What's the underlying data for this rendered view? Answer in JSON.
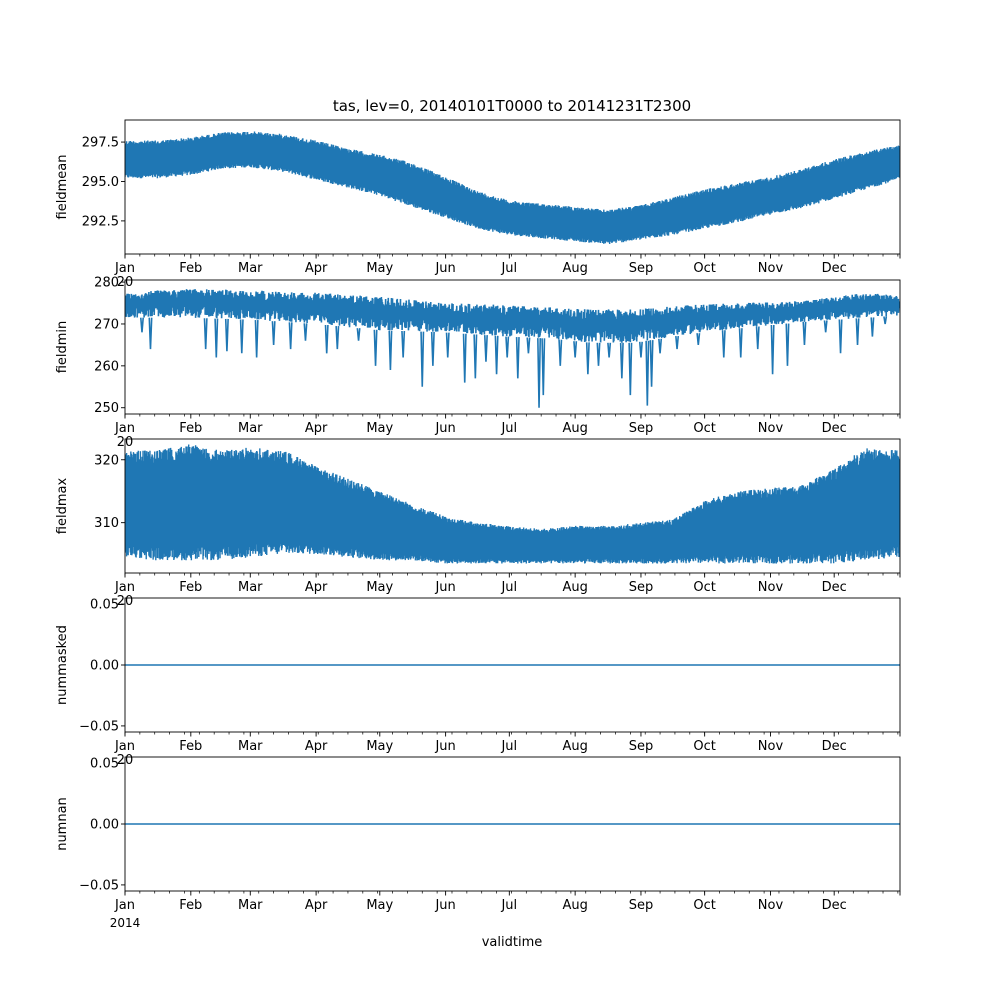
{
  "figure": {
    "title": "tas, lev=0, 20140101T0000 to 20141231T2300",
    "xlabel": "validtime",
    "year_label": "2014",
    "line_color": "#1f77b4"
  },
  "chart_data": [
    {
      "type": "line",
      "name": "fieldmean",
      "ylabel": "fieldmean",
      "ylim": [
        290.4,
        298.9
      ],
      "yticks": [
        292.5,
        295.0,
        297.5
      ],
      "ytick_labels": [
        "292.5",
        "295.0",
        "297.5"
      ],
      "x_range_days": [
        0,
        365
      ],
      "x_tick_labels": [
        "Jan",
        "Feb",
        "Mar",
        "Apr",
        "May",
        "Jun",
        "Jul",
        "Aug",
        "Sep",
        "Oct",
        "Nov",
        "Dec"
      ],
      "overlapped_offset_text": "20",
      "envelope": {
        "days": [
          0,
          15,
          31,
          45,
          59,
          75,
          90,
          105,
          120,
          135,
          151,
          166,
          181,
          196,
          212,
          227,
          243,
          258,
          273,
          288,
          304,
          319,
          334,
          349,
          364
        ],
        "upper": [
          297.6,
          297.6,
          297.8,
          298.1,
          298.2,
          298.0,
          297.6,
          297.1,
          296.7,
          296.2,
          295.3,
          294.4,
          293.8,
          293.6,
          293.4,
          293.2,
          293.5,
          294.0,
          294.5,
          294.9,
          295.3,
          295.8,
          296.4,
          296.9,
          297.3
        ],
        "lower": [
          295.2,
          295.2,
          295.4,
          295.8,
          295.9,
          295.6,
          295.1,
          294.6,
          294.1,
          293.4,
          292.7,
          292.0,
          291.6,
          291.4,
          291.2,
          291.0,
          291.3,
          291.6,
          292.0,
          292.4,
          292.9,
          293.3,
          293.9,
          294.5,
          295.1
        ]
      }
    },
    {
      "type": "line",
      "name": "fieldmin",
      "ylabel": "fieldmin",
      "ylim": [
        248.5,
        280.5
      ],
      "yticks": [
        250,
        260,
        270,
        280
      ],
      "ytick_labels": [
        "250",
        "260",
        "270",
        "280"
      ],
      "x_range_days": [
        0,
        365
      ],
      "x_tick_labels": [
        "Jan",
        "Feb",
        "Mar",
        "Apr",
        "May",
        "Jun",
        "Jul",
        "Aug",
        "Sep",
        "Oct",
        "Nov",
        "Dec"
      ],
      "overlapped_offset_text": "20",
      "envelope": {
        "days": [
          0,
          30,
          60,
          90,
          120,
          150,
          180,
          200,
          220,
          240,
          265,
          290,
          320,
          350,
          364
        ],
        "upper": [
          277.5,
          278.5,
          278.0,
          277.5,
          276.5,
          275.0,
          274.5,
          274.0,
          273.5,
          273.5,
          274.5,
          275.0,
          275.5,
          277.5,
          277.0
        ],
        "lower": [
          271.5,
          271.5,
          271.0,
          270.0,
          268.5,
          268.0,
          267.0,
          266.5,
          265.5,
          265.5,
          267.5,
          269.0,
          270.5,
          271.5,
          272.0
        ]
      },
      "dips": [
        {
          "day": 8,
          "value": 268
        },
        {
          "day": 12,
          "value": 264
        },
        {
          "day": 38,
          "value": 264
        },
        {
          "day": 43,
          "value": 262
        },
        {
          "day": 48,
          "value": 263.5
        },
        {
          "day": 55,
          "value": 263
        },
        {
          "day": 62,
          "value": 262
        },
        {
          "day": 70,
          "value": 265
        },
        {
          "day": 78,
          "value": 264
        },
        {
          "day": 85,
          "value": 266
        },
        {
          "day": 95,
          "value": 263
        },
        {
          "day": 100,
          "value": 264
        },
        {
          "day": 110,
          "value": 266
        },
        {
          "day": 118,
          "value": 260
        },
        {
          "day": 125,
          "value": 259
        },
        {
          "day": 131,
          "value": 262
        },
        {
          "day": 140,
          "value": 255
        },
        {
          "day": 145,
          "value": 260
        },
        {
          "day": 152,
          "value": 262
        },
        {
          "day": 160,
          "value": 256
        },
        {
          "day": 165,
          "value": 257
        },
        {
          "day": 170,
          "value": 261
        },
        {
          "day": 175,
          "value": 258
        },
        {
          "day": 180,
          "value": 262
        },
        {
          "day": 185,
          "value": 257
        },
        {
          "day": 190,
          "value": 263
        },
        {
          "day": 195,
          "value": 250
        },
        {
          "day": 197,
          "value": 253
        },
        {
          "day": 205,
          "value": 260
        },
        {
          "day": 212,
          "value": 262
        },
        {
          "day": 218,
          "value": 258
        },
        {
          "day": 223,
          "value": 260
        },
        {
          "day": 228,
          "value": 262
        },
        {
          "day": 234,
          "value": 257
        },
        {
          "day": 238,
          "value": 253
        },
        {
          "day": 243,
          "value": 262
        },
        {
          "day": 246,
          "value": 250.5
        },
        {
          "day": 248,
          "value": 255
        },
        {
          "day": 252,
          "value": 263
        },
        {
          "day": 260,
          "value": 264
        },
        {
          "day": 270,
          "value": 265
        },
        {
          "day": 282,
          "value": 262
        },
        {
          "day": 290,
          "value": 262
        },
        {
          "day": 298,
          "value": 264
        },
        {
          "day": 305,
          "value": 258
        },
        {
          "day": 312,
          "value": 260
        },
        {
          "day": 320,
          "value": 265
        },
        {
          "day": 330,
          "value": 268
        },
        {
          "day": 337,
          "value": 263
        },
        {
          "day": 345,
          "value": 265
        },
        {
          "day": 352,
          "value": 267
        },
        {
          "day": 358,
          "value": 270
        }
      ]
    },
    {
      "type": "line",
      "name": "fieldmax",
      "ylabel": "fieldmax",
      "ylim": [
        302.0,
        323.3
      ],
      "yticks": [
        310,
        320
      ],
      "ytick_labels": [
        "310",
        "320"
      ],
      "x_range_days": [
        0,
        365
      ],
      "x_tick_labels": [
        "Jan",
        "Feb",
        "Mar",
        "Apr",
        "May",
        "Jun",
        "Jul",
        "Aug",
        "Sep",
        "Oct",
        "Nov",
        "Dec"
      ],
      "overlapped_offset_text": "20",
      "envelope": {
        "days": [
          0,
          15,
          31,
          45,
          59,
          75,
          90,
          105,
          120,
          135,
          151,
          166,
          181,
          196,
          212,
          227,
          243,
          258,
          273,
          288,
          304,
          319,
          334,
          349,
          364
        ],
        "upper": [
          321.5,
          321.5,
          322.5,
          321.5,
          322.0,
          321.5,
          319.0,
          317.0,
          315.0,
          313.0,
          311.0,
          310.0,
          309.5,
          309.0,
          309.5,
          309.5,
          310.0,
          310.5,
          313.5,
          315.0,
          315.5,
          316.0,
          318.5,
          322.0,
          321.5
        ],
        "lower": [
          304.5,
          304.0,
          304.0,
          304.0,
          304.5,
          305.0,
          305.0,
          304.5,
          304.0,
          304.0,
          303.5,
          303.5,
          303.5,
          303.5,
          303.5,
          303.5,
          303.5,
          303.5,
          303.5,
          303.5,
          303.5,
          303.5,
          303.5,
          304.0,
          304.5
        ]
      }
    },
    {
      "type": "line",
      "name": "nummasked",
      "ylabel": "nummasked",
      "ylim": [
        -0.055,
        0.055
      ],
      "yticks": [
        -0.05,
        0.0,
        0.05
      ],
      "ytick_labels": [
        "−0.05",
        "0.00",
        "0.05"
      ],
      "x_range_days": [
        0,
        365
      ],
      "x_tick_labels": [
        "Jan",
        "Feb",
        "Mar",
        "Apr",
        "May",
        "Jun",
        "Jul",
        "Aug",
        "Sep",
        "Oct",
        "Nov",
        "Dec"
      ],
      "overlapped_offset_text": "20",
      "constant_value": 0.0
    },
    {
      "type": "line",
      "name": "numnan",
      "ylabel": "numnan",
      "ylim": [
        -0.055,
        0.055
      ],
      "yticks": [
        -0.05,
        0.0,
        0.05
      ],
      "ytick_labels": [
        "−0.05",
        "0.00",
        "0.05"
      ],
      "x_range_days": [
        0,
        365
      ],
      "x_tick_labels": [
        "Jan",
        "Feb",
        "Mar",
        "Apr",
        "May",
        "Jun",
        "Jul",
        "Aug",
        "Sep",
        "Oct",
        "Nov",
        "Dec"
      ],
      "constant_value": 0.0
    }
  ]
}
